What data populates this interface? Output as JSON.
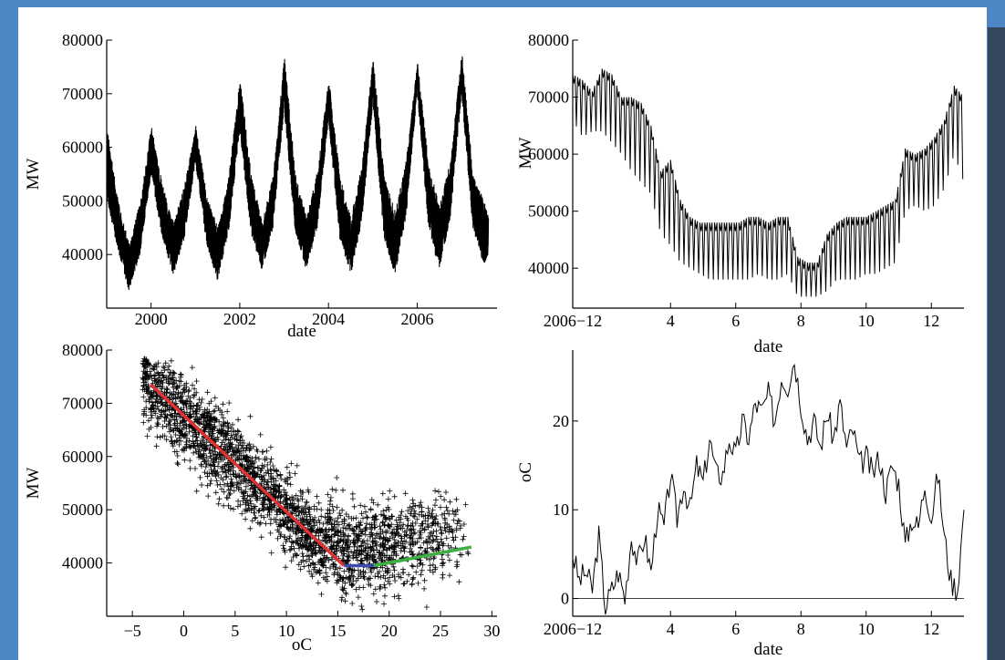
{
  "colors": {
    "background": "#4f86c6",
    "panel": "#ffffff",
    "strip": "#34475c",
    "ink": "#000000",
    "fit_red": "#e03030",
    "fit_blue": "#3b4bb0",
    "fit_green": "#3cb043"
  },
  "chart_data": [
    {
      "type": "line",
      "xlabel": "date",
      "ylabel": "MW",
      "xlim": [
        1999.0,
        2007.8
      ],
      "ylim": [
        30000,
        80000
      ],
      "x_ticks": [
        "2000",
        "2002",
        "2004",
        "2006"
      ],
      "y_ticks": [
        "40000",
        "50000",
        "60000",
        "70000",
        "80000"
      ],
      "x_unit": "year",
      "series": [
        {
          "values_desc": "daily load with strong seasonal cycle",
          "x": [
            1999.0,
            1999.25,
            1999.5,
            1999.75,
            2000.0,
            2000.25,
            2000.5,
            2000.75,
            2001.0,
            2001.25,
            2001.5,
            2001.75,
            2002.0,
            2002.25,
            2002.5,
            2002.75,
            2003.0,
            2003.25,
            2003.5,
            2003.75,
            2004.0,
            2004.25,
            2004.5,
            2004.75,
            2005.0,
            2005.25,
            2005.5,
            2005.75,
            2006.0,
            2006.25,
            2006.5,
            2006.75,
            2007.0,
            2007.25,
            2007.5,
            2007.6
          ],
          "low": [
            50000,
            41000,
            33000,
            40000,
            55000,
            43000,
            36000,
            43000,
            57000,
            42000,
            35000,
            44000,
            63000,
            44000,
            37000,
            45000,
            67000,
            44000,
            37000,
            45000,
            65000,
            43000,
            36000,
            46000,
            68000,
            43000,
            36000,
            47000,
            70000,
            45000,
            37000,
            47000,
            70000,
            45000,
            38000,
            40000
          ],
          "high": [
            64000,
            50000,
            42000,
            50000,
            64000,
            53000,
            46000,
            53000,
            64000,
            51000,
            45000,
            55000,
            73000,
            55000,
            46000,
            55000,
            77000,
            55000,
            47000,
            56000,
            73000,
            55000,
            47000,
            57000,
            77000,
            55000,
            48000,
            58000,
            76000,
            57000,
            49000,
            58000,
            78000,
            55000,
            50000,
            47000
          ]
        }
      ]
    },
    {
      "type": "line",
      "xlabel": "date",
      "ylabel": "MW",
      "xlim": [
        1,
        13
      ],
      "ylim": [
        33000,
        80000
      ],
      "x_ticks": [
        "2006−12",
        "4",
        "6",
        "8",
        "10",
        "12"
      ],
      "y_ticks": [
        "40000",
        "50000",
        "60000",
        "70000",
        "80000"
      ],
      "series": [
        {
          "x": [
            1.0,
            1.3,
            1.6,
            1.9,
            2.2,
            2.5,
            2.8,
            3.1,
            3.4,
            3.7,
            4.0,
            4.3,
            4.6,
            4.9,
            5.2,
            5.5,
            5.8,
            6.1,
            6.4,
            6.7,
            7.0,
            7.3,
            7.6,
            7.9,
            8.2,
            8.5,
            8.8,
            9.1,
            9.4,
            9.7,
            10.0,
            10.3,
            10.6,
            10.9,
            11.2,
            11.5,
            11.8,
            12.1,
            12.4,
            12.7,
            13.0
          ],
          "weekday": [
            74000,
            73000,
            71000,
            75000,
            74000,
            70000,
            70000,
            69000,
            65000,
            57000,
            59000,
            52000,
            49000,
            48000,
            48000,
            48000,
            48000,
            48000,
            49000,
            49000,
            48000,
            49000,
            49000,
            42000,
            41000,
            41000,
            46000,
            48000,
            49000,
            49000,
            49000,
            50000,
            51000,
            52000,
            61000,
            60000,
            61000,
            63000,
            66000,
            72000,
            70000
          ],
          "weekend": [
            66000,
            63000,
            64000,
            64000,
            62000,
            60000,
            57000,
            55000,
            53000,
            46000,
            44000,
            41000,
            40000,
            39000,
            38000,
            38000,
            38000,
            38000,
            38000,
            39000,
            38000,
            38000,
            39000,
            35000,
            35000,
            35000,
            36000,
            38000,
            38000,
            38000,
            39000,
            39000,
            40000,
            41000,
            50000,
            51000,
            50000,
            51000,
            54000,
            60000,
            55000
          ]
        }
      ]
    },
    {
      "type": "scatter",
      "xlabel": "oC",
      "ylabel": "MW",
      "xlim": [
        -7.5,
        30.5
      ],
      "ylim": [
        30000,
        80000
      ],
      "x_ticks": [
        "−5",
        "0",
        "5",
        "10",
        "15",
        "20",
        "25",
        "30"
      ],
      "y_ticks": [
        "40000",
        "50000",
        "60000",
        "70000",
        "80000"
      ],
      "marker": "+",
      "fit_segments": [
        {
          "color": "red",
          "x": [
            -3.2,
            15.6
          ],
          "y": [
            73500,
            39500
          ]
        },
        {
          "color": "blue",
          "x": [
            15.6,
            18.5
          ],
          "y": [
            39500,
            39500
          ]
        },
        {
          "color": "green",
          "x": [
            18.5,
            28.0
          ],
          "y": [
            39500,
            43000
          ]
        }
      ]
    },
    {
      "type": "line",
      "xlabel": "date",
      "ylabel": "oC",
      "xlim": [
        1,
        13
      ],
      "ylim": [
        -2,
        28
      ],
      "x_ticks": [
        "2006−12",
        "4",
        "6",
        "8",
        "10",
        "12"
      ],
      "y_ticks": [
        "0",
        "10",
        "20"
      ],
      "baseline": 0,
      "series": [
        {
          "x": [
            1.0,
            1.2,
            1.4,
            1.6,
            1.8,
            2.0,
            2.2,
            2.4,
            2.6,
            2.8,
            3.0,
            3.2,
            3.4,
            3.6,
            3.8,
            4.0,
            4.2,
            4.4,
            4.6,
            4.8,
            5.0,
            5.2,
            5.4,
            5.6,
            5.8,
            6.0,
            6.2,
            6.4,
            6.6,
            6.8,
            7.0,
            7.2,
            7.4,
            7.6,
            7.8,
            8.0,
            8.2,
            8.4,
            8.6,
            8.8,
            9.0,
            9.2,
            9.4,
            9.6,
            9.8,
            10.0,
            10.2,
            10.4,
            10.6,
            10.8,
            11.0,
            11.2,
            11.4,
            11.6,
            11.8,
            12.0,
            12.2,
            12.4,
            12.6,
            12.8,
            13.0
          ],
          "y": [
            5,
            2,
            3,
            1,
            7,
            -1,
            1,
            3,
            0,
            7,
            4,
            7,
            3,
            10,
            8,
            14,
            9,
            13,
            10,
            15,
            13,
            18,
            14,
            14,
            18,
            16,
            20,
            18,
            22,
            21,
            23,
            20,
            25,
            24,
            27,
            22,
            18,
            20,
            17,
            21,
            18,
            22,
            17,
            19,
            15,
            16,
            14,
            16,
            12,
            15,
            13,
            6,
            9,
            8,
            13,
            9,
            14,
            7,
            2,
            1,
            10
          ]
        }
      ]
    }
  ]
}
